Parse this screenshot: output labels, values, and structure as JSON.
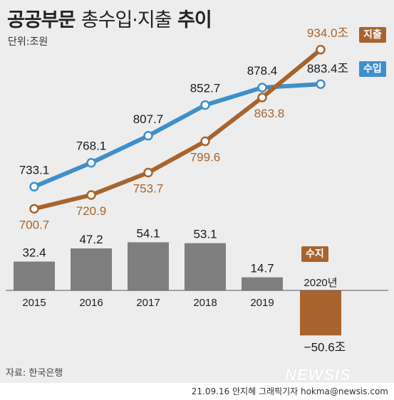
{
  "title": {
    "main": "공공부문",
    "sub": "총수입·지출",
    "end": "추이"
  },
  "unit": "단위:조원",
  "source": "자료: 한국은행",
  "credit": "21.09.16 안지혜 그래픽기자 hokma@newsis.com",
  "logo": "NEWSIS",
  "tags": {
    "expenditure": "지출",
    "revenue": "수입",
    "balance": "수지"
  },
  "colors": {
    "revenue": "#3f8fcb",
    "expenditure": "#a8642c",
    "bar": "#7f7f7f",
    "bar_negative": "#a8642c",
    "background": "#ededed"
  },
  "chart_data": [
    {
      "type": "line",
      "x": [
        "2015",
        "2016",
        "2017",
        "2018",
        "2019",
        "2020년"
      ],
      "series": [
        {
          "name": "수입",
          "values": [
            733.1,
            768.1,
            807.7,
            852.7,
            878.4,
            883.4
          ],
          "labels": [
            "733.1",
            "768.1",
            "807.7",
            "852.7",
            "878.4",
            "883.4조"
          ]
        },
        {
          "name": "지출",
          "values": [
            700.7,
            720.9,
            753.7,
            799.6,
            863.8,
            934.0
          ],
          "labels": [
            "700.7",
            "720.9",
            "753.7",
            "799.6",
            "863.8",
            "934.0조"
          ]
        }
      ]
    },
    {
      "type": "bar",
      "categories": [
        "2015",
        "2016",
        "2017",
        "2018",
        "2019",
        "2020년"
      ],
      "series": [
        {
          "name": "수지",
          "values": [
            32.4,
            47.2,
            54.1,
            53.1,
            14.7,
            -50.6
          ],
          "labels": [
            "32.4",
            "47.2",
            "54.1",
            "53.1",
            "14.7",
            "−50.6조"
          ]
        }
      ]
    }
  ]
}
